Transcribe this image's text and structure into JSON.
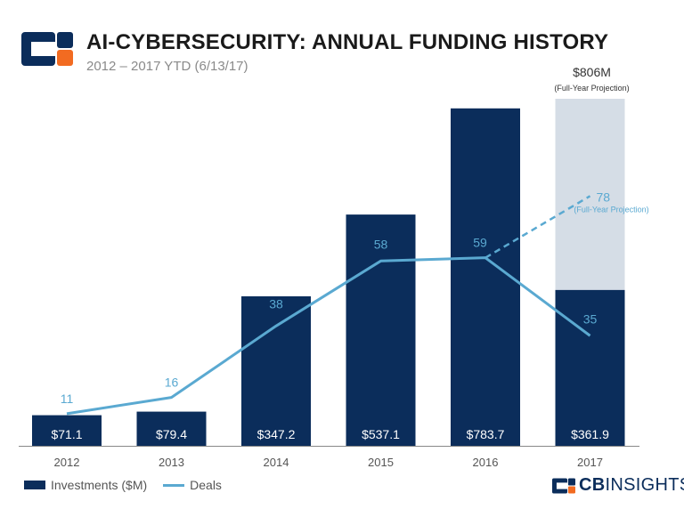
{
  "header": {
    "title": "AI-CYBERSECURITY: ANNUAL FUNDING HISTORY",
    "subtitle": "2012 – 2017 YTD (6/13/17)"
  },
  "brand": {
    "part1": "CB",
    "part2": "INSIGHTS"
  },
  "colors": {
    "bar": "#0b2d5b",
    "projection": "#d5dde6",
    "line": "#5aa9d1",
    "axis": "#888888"
  },
  "chart_data": {
    "type": "bar+line",
    "categories": [
      "2012",
      "2013",
      "2014",
      "2015",
      "2016",
      "2017"
    ],
    "series": [
      {
        "name": "Investments ($M)",
        "type": "bar",
        "values": [
          71.1,
          79.4,
          347.2,
          537.1,
          783.7,
          361.9
        ],
        "labels": [
          "$71.1",
          "$79.4",
          "$347.2",
          "$537.1",
          "$783.7",
          "$361.9"
        ]
      },
      {
        "name": "Deals",
        "type": "line",
        "values": [
          11,
          16,
          38,
          58,
          59,
          35
        ],
        "labels": [
          "11",
          "16",
          "38",
          "58",
          "59",
          "35"
        ]
      }
    ],
    "projection": {
      "investment_value": 806,
      "investment_label": "$806M",
      "investment_note": "(Full-Year Projection)",
      "deals_value": 78,
      "deals_label": "78",
      "deals_note": "(Full-Year Projection)"
    },
    "legend": [
      "Investments ($M)",
      "Deals"
    ],
    "bar_ylim": [
      0,
      806
    ],
    "deals_ylim": [
      0,
      80
    ]
  }
}
